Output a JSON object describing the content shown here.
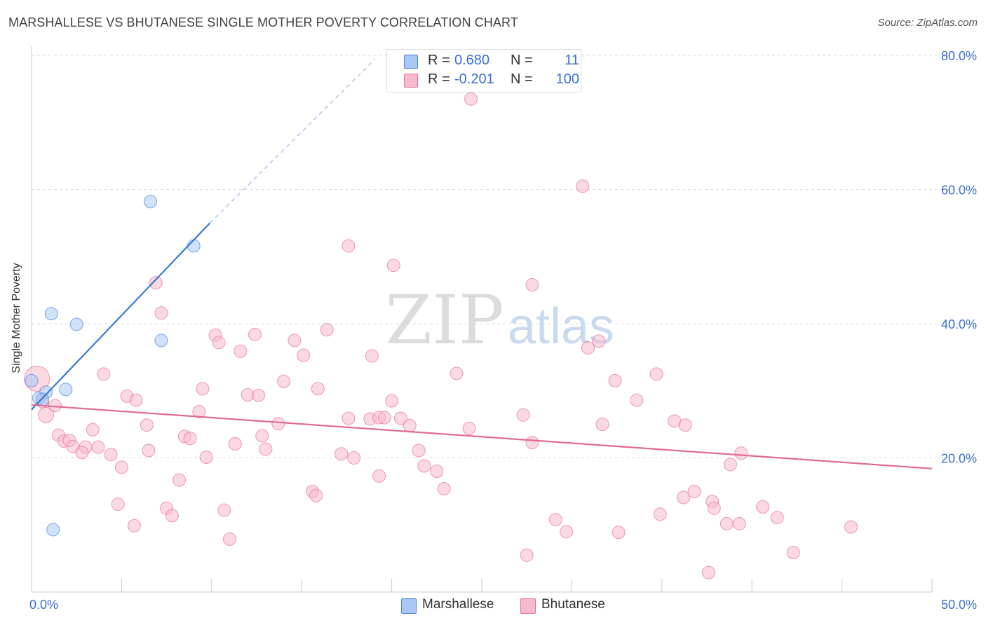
{
  "title": "MARSHALLESE VS BHUTANESE SINGLE MOTHER POVERTY CORRELATION CHART",
  "source": "Source: ZipAtlas.com",
  "watermark": {
    "zip": "ZIP",
    "atlas": "atlas"
  },
  "legend_top": {
    "rows": [
      {
        "r_label": "R =",
        "r_value": "0.680",
        "n_label": "N =",
        "n_value": "11",
        "color": "#aac8f5"
      },
      {
        "r_label": "R =",
        "r_value": "-0.201",
        "n_label": "N =",
        "n_value": "100",
        "color": "#f7b9cc"
      }
    ]
  },
  "legend_bottom": {
    "items": [
      {
        "label": "Marshallese",
        "color": "#aac8f5"
      },
      {
        "label": "Bhutanese",
        "color": "#f7b9cc"
      }
    ]
  },
  "chart_data": {
    "type": "scatter",
    "title": "MARSHALLESE VS BHUTANESE SINGLE MOTHER POVERTY CORRELATION CHART",
    "xlabel": "",
    "ylabel": "Single Mother Poverty",
    "xlim": [
      0,
      50
    ],
    "ylim": [
      0,
      80
    ],
    "x_ticks_labeled": [
      "0.0%",
      "50.0%"
    ],
    "y_ticks": [
      {
        "value": 20,
        "label": "20.0%"
      },
      {
        "value": 40,
        "label": "40.0%"
      },
      {
        "value": 60,
        "label": "60.0%"
      },
      {
        "value": 80,
        "label": "80.0%"
      }
    ],
    "grid": "horizontal dashed",
    "legend_placement": "top-center",
    "series": [
      {
        "name": "Marshallese",
        "color": "#4a85d8",
        "fill": "#aac8f5",
        "points": [
          [
            6.6,
            58.2
          ],
          [
            9.0,
            51.6
          ],
          [
            1.1,
            41.5
          ],
          [
            2.5,
            39.9
          ],
          [
            7.2,
            37.5
          ],
          [
            0.0,
            31.5
          ],
          [
            1.9,
            30.2
          ],
          [
            0.8,
            29.8
          ],
          [
            0.4,
            28.9
          ],
          [
            0.6,
            28.7
          ],
          [
            1.2,
            9.3
          ]
        ],
        "trend": {
          "x1": 0.0,
          "y1": 27.2,
          "x2": 9.9,
          "y2": 55.0,
          "dash_x2": 21.5,
          "dash_y2": 87.5
        }
      },
      {
        "name": "Bhutanese",
        "color": "#e86f9a",
        "fill": "#f7b9cc",
        "points": [
          [
            24.4,
            73.5
          ],
          [
            30.6,
            60.5
          ],
          [
            17.6,
            51.6
          ],
          [
            20.1,
            48.7
          ],
          [
            27.8,
            45.8
          ],
          [
            6.9,
            46.1
          ],
          [
            7.2,
            41.6
          ],
          [
            16.4,
            39.1
          ],
          [
            12.4,
            38.4
          ],
          [
            10.2,
            38.3
          ],
          [
            14.6,
            37.5
          ],
          [
            10.4,
            37.2
          ],
          [
            31.5,
            37.4
          ],
          [
            30.9,
            36.4
          ],
          [
            11.6,
            35.9
          ],
          [
            15.1,
            35.3
          ],
          [
            18.9,
            35.2
          ],
          [
            4.0,
            32.5
          ],
          [
            23.6,
            32.6
          ],
          [
            34.7,
            32.5
          ],
          [
            32.4,
            31.5
          ],
          [
            14.0,
            31.4
          ],
          [
            9.5,
            30.3
          ],
          [
            15.9,
            30.3
          ],
          [
            12.0,
            29.4
          ],
          [
            12.6,
            29.3
          ],
          [
            5.3,
            29.2
          ],
          [
            5.8,
            28.6
          ],
          [
            33.6,
            28.6
          ],
          [
            20.0,
            28.5
          ],
          [
            0.6,
            28.4
          ],
          [
            1.3,
            27.8
          ],
          [
            9.3,
            26.9
          ],
          [
            27.3,
            26.4
          ],
          [
            0.8,
            26.4
          ],
          [
            17.6,
            25.9
          ],
          [
            18.8,
            25.8
          ],
          [
            19.3,
            26.0
          ],
          [
            19.6,
            26.0
          ],
          [
            20.5,
            25.9
          ],
          [
            35.7,
            25.5
          ],
          [
            13.7,
            25.1
          ],
          [
            6.4,
            24.9
          ],
          [
            21.0,
            24.8
          ],
          [
            31.7,
            25.0
          ],
          [
            36.3,
            24.9
          ],
          [
            24.3,
            24.4
          ],
          [
            3.4,
            24.2
          ],
          [
            1.5,
            23.4
          ],
          [
            8.5,
            23.2
          ],
          [
            8.8,
            22.9
          ],
          [
            12.8,
            23.3
          ],
          [
            1.8,
            22.5
          ],
          [
            2.1,
            22.6
          ],
          [
            11.3,
            22.1
          ],
          [
            27.8,
            22.3
          ],
          [
            2.3,
            21.7
          ],
          [
            3.0,
            21.6
          ],
          [
            3.7,
            21.6
          ],
          [
            13.0,
            21.3
          ],
          [
            6.5,
            21.1
          ],
          [
            21.5,
            21.1
          ],
          [
            2.8,
            20.8
          ],
          [
            4.4,
            20.5
          ],
          [
            17.2,
            20.6
          ],
          [
            9.7,
            20.1
          ],
          [
            17.9,
            20.0
          ],
          [
            39.4,
            20.7
          ],
          [
            38.8,
            19.0
          ],
          [
            21.8,
            18.8
          ],
          [
            5.0,
            18.6
          ],
          [
            22.5,
            18.0
          ],
          [
            19.3,
            17.3
          ],
          [
            8.2,
            16.7
          ],
          [
            22.9,
            15.4
          ],
          [
            15.6,
            15.0
          ],
          [
            15.8,
            14.4
          ],
          [
            36.8,
            15.0
          ],
          [
            36.2,
            14.1
          ],
          [
            37.8,
            13.5
          ],
          [
            4.8,
            13.1
          ],
          [
            37.9,
            12.5
          ],
          [
            40.6,
            12.7
          ],
          [
            7.5,
            12.5
          ],
          [
            10.7,
            12.2
          ],
          [
            7.8,
            11.4
          ],
          [
            34.9,
            11.6
          ],
          [
            41.4,
            11.1
          ],
          [
            29.1,
            10.8
          ],
          [
            38.6,
            10.2
          ],
          [
            39.3,
            10.2
          ],
          [
            5.7,
            9.9
          ],
          [
            45.5,
            9.7
          ],
          [
            29.7,
            9.0
          ],
          [
            32.6,
            8.9
          ],
          [
            11.0,
            7.9
          ],
          [
            42.3,
            5.9
          ],
          [
            27.5,
            5.5
          ],
          [
            37.6,
            2.9
          ],
          [
            0.3,
            31.8
          ]
        ],
        "trend": {
          "x1": 0.0,
          "y1": 27.9,
          "x2": 50.0,
          "y2": 18.4
        }
      }
    ]
  }
}
